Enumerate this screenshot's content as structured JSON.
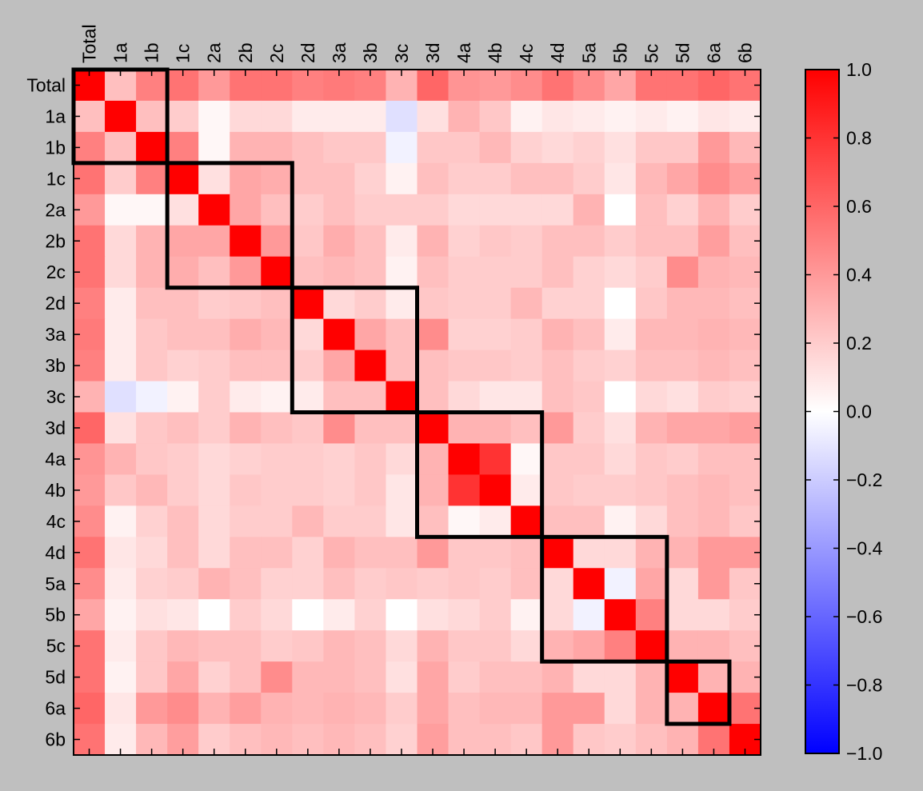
{
  "chart_data": {
    "type": "heatmap",
    "labels": [
      "Total",
      "1a",
      "1b",
      "1c",
      "2a",
      "2b",
      "2c",
      "2d",
      "3a",
      "3b",
      "3c",
      "3d",
      "4a",
      "4b",
      "4c",
      "4d",
      "5a",
      "5b",
      "5c",
      "5d",
      "6a",
      "6b"
    ],
    "matrix": [
      [
        1.0,
        0.25,
        0.5,
        0.55,
        0.4,
        0.55,
        0.55,
        0.5,
        0.52,
        0.5,
        0.3,
        0.6,
        0.42,
        0.4,
        0.45,
        0.55,
        0.45,
        0.35,
        0.55,
        0.55,
        0.6,
        0.55
      ],
      [
        0.25,
        1.0,
        0.25,
        0.2,
        0.03,
        0.15,
        0.15,
        0.08,
        0.08,
        0.08,
        -0.12,
        0.12,
        0.3,
        0.22,
        0.05,
        0.1,
        0.08,
        0.05,
        0.08,
        0.05,
        0.1,
        0.08
      ],
      [
        0.5,
        0.25,
        1.0,
        0.5,
        0.03,
        0.3,
        0.3,
        0.25,
        0.22,
        0.22,
        -0.05,
        0.22,
        0.22,
        0.28,
        0.18,
        0.15,
        0.18,
        0.12,
        0.22,
        0.22,
        0.4,
        0.28
      ],
      [
        0.55,
        0.2,
        0.5,
        1.0,
        0.12,
        0.35,
        0.32,
        0.25,
        0.25,
        0.18,
        0.05,
        0.25,
        0.2,
        0.2,
        0.25,
        0.25,
        0.2,
        0.1,
        0.28,
        0.35,
        0.45,
        0.38
      ],
      [
        0.4,
        0.03,
        0.03,
        0.12,
        1.0,
        0.35,
        0.25,
        0.2,
        0.25,
        0.2,
        0.2,
        0.2,
        0.15,
        0.15,
        0.15,
        0.15,
        0.3,
        0.0,
        0.25,
        0.18,
        0.3,
        0.2
      ],
      [
        0.55,
        0.15,
        0.3,
        0.35,
        0.35,
        1.0,
        0.4,
        0.22,
        0.32,
        0.25,
        0.08,
        0.3,
        0.18,
        0.22,
        0.2,
        0.25,
        0.25,
        0.2,
        0.25,
        0.25,
        0.38,
        0.25
      ],
      [
        0.55,
        0.15,
        0.3,
        0.32,
        0.25,
        0.4,
        1.0,
        0.25,
        0.28,
        0.25,
        0.05,
        0.25,
        0.2,
        0.2,
        0.2,
        0.25,
        0.18,
        0.15,
        0.2,
        0.45,
        0.3,
        0.28
      ],
      [
        0.5,
        0.08,
        0.25,
        0.25,
        0.2,
        0.22,
        0.25,
        1.0,
        0.15,
        0.2,
        0.08,
        0.22,
        0.2,
        0.2,
        0.28,
        0.18,
        0.18,
        0.0,
        0.22,
        0.28,
        0.28,
        0.25
      ],
      [
        0.52,
        0.08,
        0.22,
        0.25,
        0.25,
        0.32,
        0.28,
        0.15,
        1.0,
        0.35,
        0.25,
        0.45,
        0.18,
        0.18,
        0.2,
        0.3,
        0.25,
        0.08,
        0.28,
        0.28,
        0.3,
        0.28
      ],
      [
        0.5,
        0.08,
        0.22,
        0.18,
        0.2,
        0.25,
        0.25,
        0.2,
        0.35,
        1.0,
        0.25,
        0.25,
        0.22,
        0.22,
        0.2,
        0.25,
        0.2,
        0.18,
        0.25,
        0.25,
        0.28,
        0.25
      ],
      [
        0.3,
        -0.12,
        -0.05,
        0.05,
        0.2,
        0.08,
        0.05,
        0.08,
        0.25,
        0.25,
        1.0,
        0.25,
        0.15,
        0.1,
        0.1,
        0.25,
        0.22,
        0.0,
        0.15,
        0.12,
        0.2,
        0.18
      ],
      [
        0.6,
        0.12,
        0.22,
        0.25,
        0.2,
        0.3,
        0.25,
        0.22,
        0.45,
        0.25,
        0.25,
        1.0,
        0.3,
        0.3,
        0.25,
        0.4,
        0.2,
        0.12,
        0.3,
        0.35,
        0.35,
        0.38
      ],
      [
        0.42,
        0.3,
        0.22,
        0.2,
        0.15,
        0.18,
        0.2,
        0.2,
        0.18,
        0.22,
        0.15,
        0.3,
        1.0,
        0.8,
        0.03,
        0.22,
        0.22,
        0.15,
        0.22,
        0.2,
        0.25,
        0.25
      ],
      [
        0.4,
        0.22,
        0.28,
        0.2,
        0.15,
        0.22,
        0.2,
        0.2,
        0.18,
        0.22,
        0.1,
        0.3,
        0.8,
        1.0,
        0.08,
        0.22,
        0.2,
        0.2,
        0.22,
        0.25,
        0.28,
        0.25
      ],
      [
        0.45,
        0.05,
        0.18,
        0.25,
        0.15,
        0.2,
        0.2,
        0.28,
        0.2,
        0.2,
        0.1,
        0.25,
        0.03,
        0.08,
        1.0,
        0.25,
        0.25,
        0.05,
        0.15,
        0.25,
        0.28,
        0.22
      ],
      [
        0.55,
        0.1,
        0.15,
        0.25,
        0.15,
        0.25,
        0.25,
        0.18,
        0.3,
        0.25,
        0.25,
        0.4,
        0.22,
        0.22,
        0.25,
        1.0,
        0.15,
        0.15,
        0.3,
        0.3,
        0.4,
        0.4
      ],
      [
        0.45,
        0.08,
        0.18,
        0.2,
        0.3,
        0.25,
        0.18,
        0.18,
        0.25,
        0.2,
        0.22,
        0.2,
        0.22,
        0.2,
        0.25,
        0.15,
        1.0,
        -0.05,
        0.35,
        0.15,
        0.4,
        0.22
      ],
      [
        0.35,
        0.05,
        0.12,
        0.1,
        0.0,
        0.2,
        0.15,
        0.0,
        0.08,
        0.18,
        0.0,
        0.12,
        0.15,
        0.2,
        0.05,
        0.15,
        -0.05,
        1.0,
        0.5,
        0.15,
        0.15,
        0.2
      ],
      [
        0.55,
        0.08,
        0.22,
        0.28,
        0.25,
        0.25,
        0.2,
        0.22,
        0.28,
        0.25,
        0.15,
        0.3,
        0.22,
        0.22,
        0.15,
        0.3,
        0.35,
        0.5,
        1.0,
        0.3,
        0.3,
        0.25
      ],
      [
        0.55,
        0.05,
        0.22,
        0.35,
        0.18,
        0.25,
        0.45,
        0.28,
        0.28,
        0.25,
        0.12,
        0.35,
        0.2,
        0.25,
        0.25,
        0.3,
        0.15,
        0.15,
        0.3,
        1.0,
        0.3,
        0.3
      ],
      [
        0.6,
        0.1,
        0.4,
        0.45,
        0.3,
        0.38,
        0.3,
        0.28,
        0.3,
        0.28,
        0.2,
        0.35,
        0.25,
        0.28,
        0.28,
        0.4,
        0.4,
        0.15,
        0.3,
        0.3,
        1.0,
        0.55
      ],
      [
        0.55,
        0.08,
        0.28,
        0.38,
        0.2,
        0.25,
        0.28,
        0.25,
        0.28,
        0.25,
        0.18,
        0.38,
        0.25,
        0.25,
        0.22,
        0.4,
        0.22,
        0.2,
        0.25,
        0.3,
        0.55,
        1.0
      ]
    ],
    "blocks": [
      [
        0,
        2
      ],
      [
        3,
        6
      ],
      [
        7,
        10
      ],
      [
        11,
        14
      ],
      [
        15,
        18
      ],
      [
        19,
        20
      ]
    ],
    "colorbar": {
      "range": [
        -1.0,
        1.0
      ],
      "ticks": [
        "1.0",
        "0.8",
        "0.6",
        "0.4",
        "0.2",
        "0.0",
        "−0.2",
        "−0.4",
        "−0.6",
        "−0.8",
        "−1.0"
      ],
      "colors": {
        "low": "#0000ff",
        "mid": "#ffffff",
        "high": "#ff0000"
      }
    }
  }
}
